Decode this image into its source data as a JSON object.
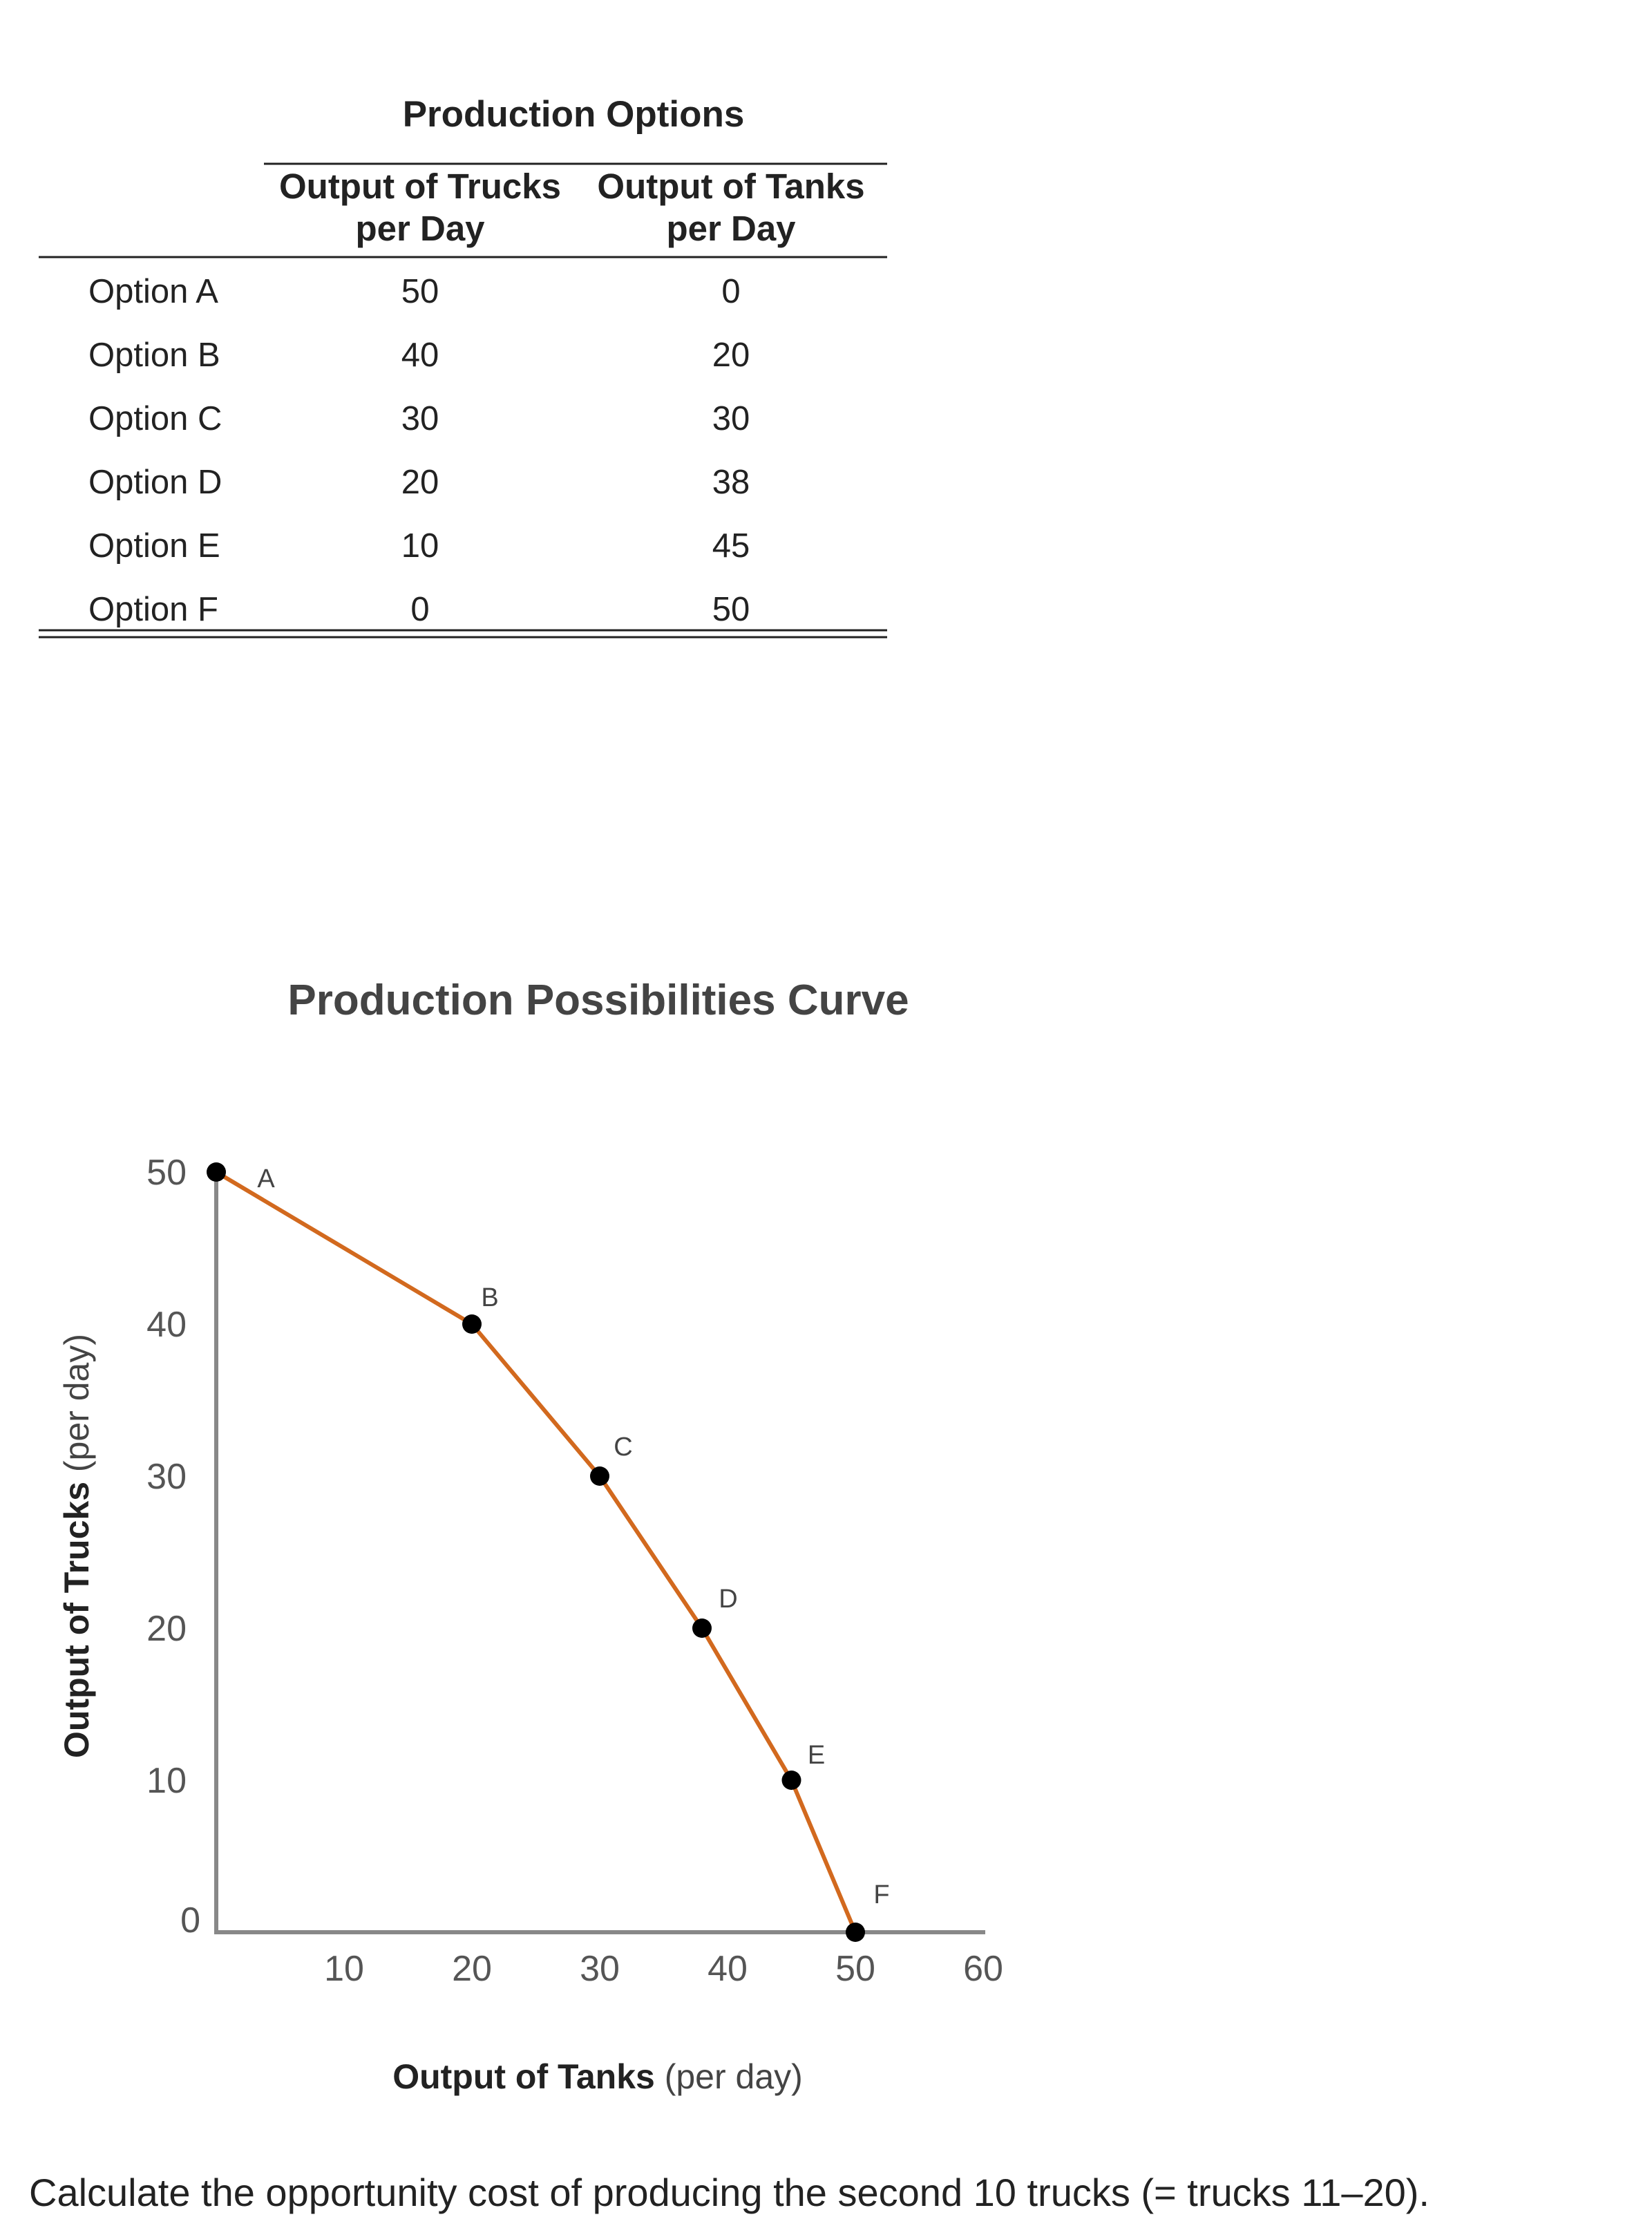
{
  "table": {
    "title": "Production Options",
    "header_trucks": [
      "Output of Trucks",
      "per Day"
    ],
    "header_tanks": [
      "Output of Tanks",
      "per Day"
    ],
    "rows": [
      {
        "option": "Option A",
        "trucks": "50",
        "tanks": "0"
      },
      {
        "option": "Option B",
        "trucks": "40",
        "tanks": "20"
      },
      {
        "option": "Option C",
        "trucks": "30",
        "tanks": "30"
      },
      {
        "option": "Option D",
        "trucks": "20",
        "tanks": "38"
      },
      {
        "option": "Option E",
        "trucks": "10",
        "tanks": "45"
      },
      {
        "option": "Option F",
        "trucks": "0",
        "tanks": "50"
      }
    ]
  },
  "chart_data": {
    "type": "line",
    "title": "Production Possibilities Curve",
    "xlabel_bold": "Output of Tanks",
    "xlabel_rest": " (per day)",
    "ylabel_bold": "Output of Trucks",
    "ylabel_rest": " (per day)",
    "xlim": [
      0,
      60
    ],
    "ylim": [
      0,
      50
    ],
    "x_ticks": [
      10,
      20,
      30,
      40,
      50,
      60
    ],
    "y_ticks": [
      0,
      10,
      20,
      30,
      40,
      50
    ],
    "grid": false,
    "color": "#d2691e",
    "points": [
      {
        "label": "A",
        "x": 0,
        "y": 50
      },
      {
        "label": "B",
        "x": 20,
        "y": 40
      },
      {
        "label": "C",
        "x": 30,
        "y": 30
      },
      {
        "label": "D",
        "x": 38,
        "y": 20
      },
      {
        "label": "E",
        "x": 45,
        "y": 10
      },
      {
        "label": "F",
        "x": 50,
        "y": 0
      }
    ]
  },
  "question": "Calculate the opportunity cost of producing the second 10 trucks (= trucks 11–20)."
}
